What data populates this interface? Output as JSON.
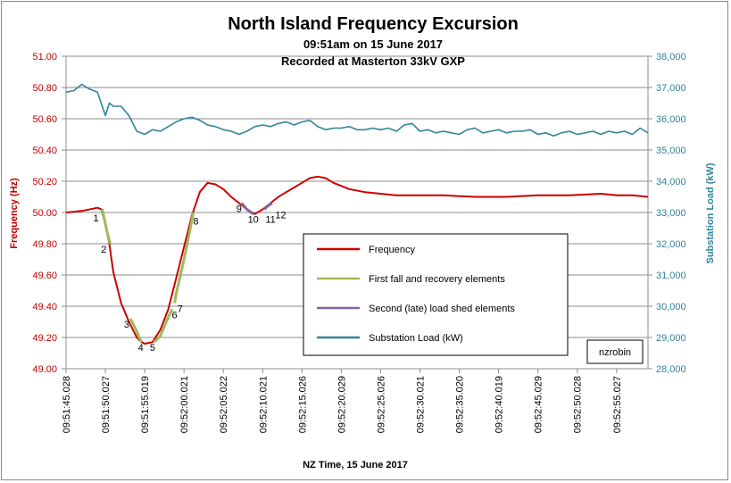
{
  "chart_data": {
    "type": "line",
    "title": "North Island Frequency Excursion",
    "subtitle1": "09:51am on 15 June 2017",
    "subtitle2": "Recorded at Masterton 33kV GXP",
    "xlabel": "NZ Time, 15 June 2017",
    "ylabel_left": "Frequency (Hz)",
    "ylabel_right": "Substation Load (kW)",
    "x_ticks": [
      "09:51:45.028",
      "09:51:50.027",
      "09:51:55.019",
      "09:52:00.021",
      "09:52:05.022",
      "09:52:10.021",
      "09:52:15.026",
      "09:52:20.029",
      "09:52:25.026",
      "09:52:30.021",
      "09:52:35.020",
      "09:52:40.019",
      "09:52:45.029",
      "09:52:50.028",
      "09:52:55.027"
    ],
    "x_unit": "seconds after 09:51:45",
    "xlim": [
      0,
      74
    ],
    "y_left_ticks": [
      "49.00",
      "49.20",
      "49.40",
      "49.60",
      "49.80",
      "50.00",
      "50.20",
      "50.40",
      "50.60",
      "50.80",
      "51.00"
    ],
    "ylim_left": [
      49.0,
      51.0
    ],
    "y_right_ticks": [
      "28,000",
      "29,000",
      "30,000",
      "31,000",
      "32,000",
      "33,000",
      "34,000",
      "35,000",
      "36,000",
      "37,000",
      "38,000"
    ],
    "ylim_right": [
      28000,
      38000
    ],
    "grid": "horizontal",
    "legend_position": "center-right",
    "watermark": "nzrobin",
    "series": [
      {
        "name": "Frequency",
        "axis": "left",
        "color": "#cc0000",
        "x": [
          0,
          2,
          4,
          4.5,
          5,
          5.5,
          6,
          7,
          8,
          9,
          9.6,
          10,
          11,
          12,
          13,
          14,
          15,
          16,
          17,
          18,
          19,
          20,
          21,
          22,
          23,
          24,
          25,
          25.5,
          26,
          27,
          28,
          29,
          30,
          31,
          32,
          33,
          34,
          35,
          36,
          38,
          40,
          42,
          45,
          48,
          52,
          56,
          60,
          64,
          68,
          70,
          72,
          74
        ],
        "y": [
          50.0,
          50.01,
          50.03,
          50.02,
          49.92,
          49.8,
          49.62,
          49.42,
          49.3,
          49.2,
          49.17,
          49.16,
          49.17,
          49.25,
          49.38,
          49.58,
          49.78,
          49.98,
          50.13,
          50.19,
          50.18,
          50.15,
          50.1,
          50.06,
          50.02,
          49.99,
          50.02,
          50.04,
          50.06,
          50.1,
          50.13,
          50.16,
          50.19,
          50.22,
          50.23,
          50.22,
          50.19,
          50.17,
          50.15,
          50.13,
          50.12,
          50.11,
          50.11,
          50.11,
          50.1,
          50.1,
          50.11,
          50.11,
          50.12,
          50.11,
          50.11,
          50.1
        ]
      },
      {
        "name": "First fall and recovery elements",
        "axis": "left",
        "color": "#9bbb59",
        "segments": [
          {
            "x": [
              4.6,
              4.9,
              5.2,
              5.5,
              5.6
            ],
            "y": [
              50.02,
              49.95,
              49.88,
              49.82,
              49.8
            ]
          },
          {
            "x": [
              8.2,
              8.6,
              9.0,
              9.3,
              9.6
            ],
            "y": [
              49.32,
              49.28,
              49.24,
              49.2,
              49.17
            ]
          },
          {
            "x": [
              11.2,
              12,
              13,
              13.5
            ],
            "y": [
              49.17,
              49.21,
              49.33,
              49.38
            ]
          },
          {
            "x": [
              13.8,
              14,
              15,
              16,
              16.2
            ],
            "y": [
              49.42,
              49.48,
              49.7,
              49.95,
              50.0
            ]
          }
        ]
      },
      {
        "name": "Second (late) load shed elements",
        "axis": "left",
        "color": "#8064a2",
        "segments": [
          {
            "x": [
              22.3,
              23,
              23.8
            ],
            "y": [
              50.06,
              50.02,
              49.99
            ]
          },
          {
            "x": [
              25.2,
              25.6,
              26.2
            ],
            "y": [
              50.02,
              50.04,
              50.06
            ]
          }
        ]
      },
      {
        "name": "Substation Load (kW)",
        "axis": "right",
        "color": "#31849b",
        "x": [
          0,
          1,
          2,
          3,
          4,
          5,
          5.5,
          6,
          7,
          8,
          9,
          10,
          11,
          12,
          13,
          14,
          15,
          16,
          17,
          18,
          19,
          20,
          21,
          22,
          23,
          24,
          25,
          26,
          27,
          28,
          29,
          30,
          31,
          32,
          33,
          34,
          35,
          36,
          37,
          38,
          39,
          40,
          41,
          42,
          43,
          44,
          45,
          46,
          47,
          48,
          49,
          50,
          51,
          52,
          53,
          54,
          55,
          56,
          57,
          58,
          59,
          60,
          61,
          62,
          63,
          64,
          65,
          66,
          67,
          68,
          69,
          70,
          71,
          72,
          73,
          74
        ],
        "y": [
          36850,
          36900,
          37100,
          36950,
          36850,
          36100,
          36500,
          36400,
          36400,
          36100,
          35600,
          35500,
          35650,
          35600,
          35750,
          35900,
          36000,
          36050,
          35950,
          35800,
          35750,
          35650,
          35600,
          35500,
          35600,
          35750,
          35800,
          35750,
          35850,
          35900,
          35800,
          35900,
          35950,
          35750,
          35650,
          35700,
          35700,
          35750,
          35650,
          35650,
          35700,
          35650,
          35700,
          35600,
          35800,
          35850,
          35600,
          35650,
          35550,
          35600,
          35550,
          35500,
          35650,
          35700,
          35550,
          35600,
          35650,
          35550,
          35600,
          35600,
          35650,
          35500,
          35550,
          35450,
          35550,
          35600,
          35500,
          35550,
          35600,
          35500,
          35600,
          35550,
          35600,
          35500,
          35700,
          35550
        ]
      }
    ],
    "annotations": [
      {
        "text": "1",
        "x": 3.8,
        "y": 50.0
      },
      {
        "text": "2",
        "x": 4.8,
        "y": 49.8
      },
      {
        "text": "3",
        "x": 7.7,
        "y": 49.32
      },
      {
        "text": "4",
        "x": 9.5,
        "y": 49.17
      },
      {
        "text": "5",
        "x": 11.0,
        "y": 49.17
      },
      {
        "text": "6",
        "x": 13.8,
        "y": 49.38
      },
      {
        "text": "7",
        "x": 14.5,
        "y": 49.42
      },
      {
        "text": "8",
        "x": 16.5,
        "y": 49.98
      },
      {
        "text": "9",
        "x": 22.0,
        "y": 50.06
      },
      {
        "text": "10",
        "x": 23.8,
        "y": 49.99
      },
      {
        "text": "11",
        "x": 26.0,
        "y": 49.99
      },
      {
        "text": "12",
        "x": 27.3,
        "y": 50.02
      }
    ]
  }
}
